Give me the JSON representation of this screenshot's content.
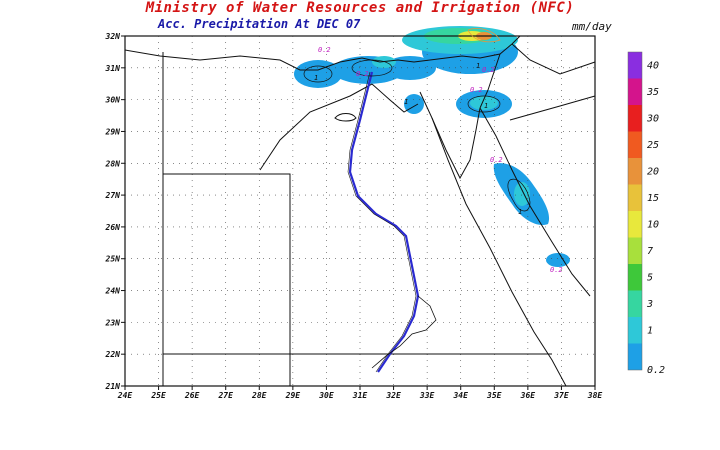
{
  "header": {
    "title": "Ministry of Water Resources and Irrigation (NFC)",
    "subtitle": "Acc. Precipitation At DEC 07",
    "units": "mm/day"
  },
  "map": {
    "lon_range": [
      24,
      38
    ],
    "lat_range": [
      21,
      32
    ],
    "lon_ticks": [
      "24E",
      "25E",
      "26E",
      "27E",
      "28E",
      "29E",
      "30E",
      "31E",
      "32E",
      "33E",
      "34E",
      "35E",
      "36E",
      "37E",
      "38E"
    ],
    "lat_ticks": [
      "21N",
      "22N",
      "23N",
      "24N",
      "25N",
      "26N",
      "27N",
      "28N",
      "29N",
      "30N",
      "31N",
      "32N"
    ],
    "contour_labels": [
      "0.2",
      "0.2",
      "0.2",
      "0.2",
      "0.2",
      "0.2",
      "1",
      "1",
      "1",
      "1",
      "1"
    ]
  },
  "colorbar": {
    "levels": [
      "0.2",
      "1",
      "3",
      "5",
      "7",
      "10",
      "15",
      "20",
      "25",
      "30",
      "35",
      "40"
    ],
    "colors": [
      "#1ea0e6",
      "#2ec8d8",
      "#36d6a0",
      "#3ec83a",
      "#a8e03c",
      "#e8e83c",
      "#e8c23a",
      "#e8923a",
      "#f05a20",
      "#e81f1f",
      "#d4148c",
      "#8a2ee0"
    ]
  }
}
